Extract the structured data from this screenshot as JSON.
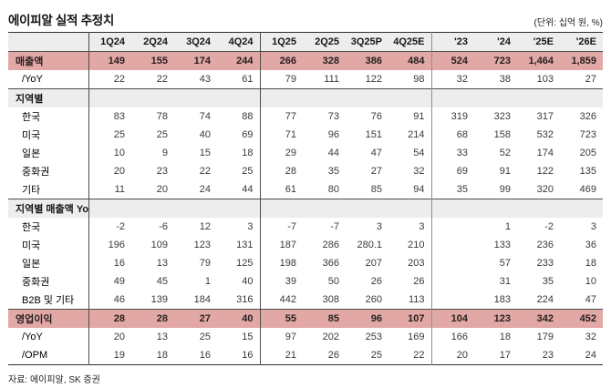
{
  "title": "에이피알 실적 추정치",
  "unit_note": "(단위: 십억 원, %)",
  "source_note": "자료: 에이피알, SK 증권",
  "colors": {
    "highlight_pink": "#e2a8a5",
    "section_gray": "#ededed",
    "border_dark": "#4c4c4c"
  },
  "table": {
    "columns": [
      "",
      "1Q24",
      "2Q24",
      "3Q24",
      "4Q24",
      "1Q25",
      "2Q25",
      "3Q25P",
      "4Q25E",
      "'23",
      "'24",
      "'25E",
      "'26E"
    ],
    "rows": [
      {
        "label": "매출액",
        "type": "highlight",
        "rule_above": false,
        "values": [
          "149",
          "155",
          "174",
          "244",
          "266",
          "328",
          "386",
          "484",
          "524",
          "723",
          "1,464",
          "1,859"
        ]
      },
      {
        "label": "/YoY",
        "type": "sub",
        "rule_above": false,
        "values": [
          "22",
          "22",
          "43",
          "61",
          "79",
          "111",
          "122",
          "98",
          "32",
          "38",
          "103",
          "27"
        ]
      },
      {
        "label": "지역별",
        "type": "section",
        "rule_above": true,
        "values": [
          "",
          "",
          "",
          "",
          "",
          "",
          "",
          "",
          "",
          "",
          "",
          ""
        ]
      },
      {
        "label": "한국",
        "type": "sub",
        "rule_above": false,
        "values": [
          "83",
          "78",
          "74",
          "88",
          "77",
          "73",
          "76",
          "91",
          "319",
          "323",
          "317",
          "326"
        ]
      },
      {
        "label": "미국",
        "type": "sub",
        "rule_above": false,
        "values": [
          "25",
          "25",
          "40",
          "69",
          "71",
          "96",
          "151",
          "214",
          "68",
          "158",
          "532",
          "723"
        ]
      },
      {
        "label": "일본",
        "type": "sub",
        "rule_above": false,
        "values": [
          "10",
          "9",
          "15",
          "18",
          "29",
          "44",
          "47",
          "54",
          "33",
          "52",
          "174",
          "205"
        ]
      },
      {
        "label": "중화권",
        "type": "sub",
        "rule_above": false,
        "values": [
          "20",
          "23",
          "22",
          "25",
          "28",
          "35",
          "27",
          "32",
          "69",
          "91",
          "122",
          "135"
        ]
      },
      {
        "label": "기타",
        "type": "sub",
        "rule_above": false,
        "values": [
          "11",
          "20",
          "24",
          "44",
          "61",
          "80",
          "85",
          "94",
          "35",
          "99",
          "320",
          "469"
        ]
      },
      {
        "label": "지역별 매출액 YoY",
        "type": "section",
        "rule_above": true,
        "values": [
          "",
          "",
          "",
          "",
          "",
          "",
          "",
          "",
          "",
          "",
          "",
          ""
        ]
      },
      {
        "label": "한국",
        "type": "sub",
        "rule_above": false,
        "values": [
          "-2",
          "-6",
          "12",
          "3",
          "-7",
          "-7",
          "3",
          "3",
          "",
          "1",
          "-2",
          "3"
        ]
      },
      {
        "label": "미국",
        "type": "sub",
        "rule_above": false,
        "values": [
          "196",
          "109",
          "123",
          "131",
          "187",
          "286",
          "280.1",
          "210",
          "",
          "133",
          "236",
          "36"
        ]
      },
      {
        "label": "일본",
        "type": "sub",
        "rule_above": false,
        "values": [
          "16",
          "13",
          "79",
          "125",
          "198",
          "366",
          "207",
          "203",
          "",
          "57",
          "233",
          "18"
        ]
      },
      {
        "label": "중화권",
        "type": "sub",
        "rule_above": false,
        "values": [
          "49",
          "45",
          "1",
          "40",
          "39",
          "50",
          "26",
          "26",
          "",
          "31",
          "35",
          "10"
        ]
      },
      {
        "label": "B2B 및 기타",
        "type": "sub",
        "rule_above": false,
        "values": [
          "46",
          "139",
          "184",
          "316",
          "442",
          "308",
          "260",
          "113",
          "",
          "183",
          "224",
          "47"
        ]
      },
      {
        "label": "영업이익",
        "type": "highlight",
        "rule_above": true,
        "values": [
          "28",
          "28",
          "27",
          "40",
          "55",
          "85",
          "96",
          "107",
          "104",
          "123",
          "342",
          "452"
        ]
      },
      {
        "label": "/YoY",
        "type": "sub",
        "rule_above": false,
        "values": [
          "20",
          "13",
          "25",
          "15",
          "97",
          "202",
          "253",
          "169",
          "166",
          "18",
          "179",
          "32"
        ]
      },
      {
        "label": "/OPM",
        "type": "sub",
        "rule_above": false,
        "values": [
          "19",
          "18",
          "16",
          "16",
          "21",
          "26",
          "25",
          "22",
          "20",
          "17",
          "23",
          "24"
        ]
      }
    ]
  }
}
